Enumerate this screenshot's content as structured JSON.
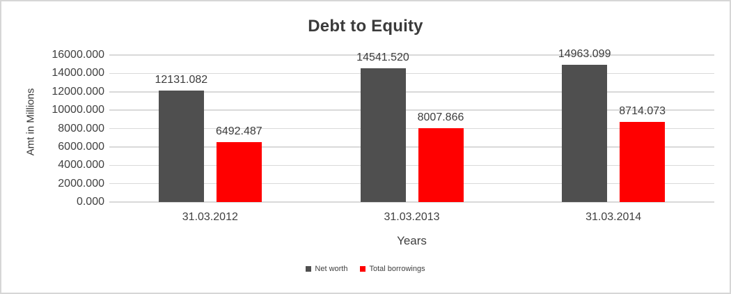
{
  "chart_data": {
    "type": "bar",
    "title": "Debt to Equity",
    "xlabel": "Years",
    "ylabel": "Amt in Millions",
    "categories": [
      "31.03.2012",
      "31.03.2013",
      "31.03.2014"
    ],
    "series": [
      {
        "name": "Net worth",
        "color": "#4F4F4F",
        "values": [
          12131.082,
          14541.52,
          14963.099
        ]
      },
      {
        "name": "Total borrowings",
        "color": "#FF0000",
        "values": [
          6492.487,
          8007.866,
          8714.073
        ]
      }
    ],
    "data_labels": [
      "12131.082",
      "6492.487",
      "14541.520",
      "8007.866",
      "14963.099",
      "8714.073"
    ],
    "ylim": [
      0,
      16000
    ],
    "ytick_step": 2000,
    "tick_decimals": 3,
    "ytick_labels": [
      "0.000",
      "2000.000",
      "4000.000",
      "6000.000",
      "8000.000",
      "10000.000",
      "12000.000",
      "14000.000",
      "16000.000"
    ],
    "grid": "horizontal",
    "legend_position": "bottom",
    "colors": {
      "gridline": "#D9D9D9",
      "axis_text": "#3F3F3F",
      "title_text": "#3B3B3B",
      "background": "#FFFFFF",
      "border": "#D6D6D6"
    }
  }
}
